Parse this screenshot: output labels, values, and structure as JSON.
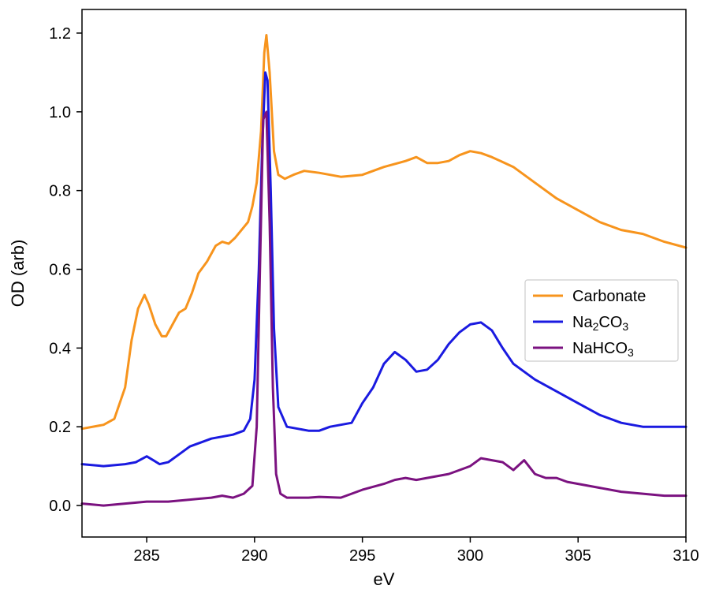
{
  "chart_data": {
    "type": "line",
    "title": "",
    "xlabel": "eV",
    "ylabel": "OD (arb)",
    "xlim": [
      282,
      310
    ],
    "ylim": [
      -0.08,
      1.26
    ],
    "xticks": [
      285,
      290,
      295,
      300,
      305,
      310
    ],
    "yticks": [
      0.0,
      0.2,
      0.4,
      0.6,
      0.8,
      1.0,
      1.2
    ],
    "xtick_labels": [
      "285",
      "290",
      "295",
      "300",
      "305",
      "310"
    ],
    "ytick_labels": [
      "0.0",
      "0.2",
      "0.4",
      "0.6",
      "0.8",
      "1.0",
      "1.2"
    ],
    "grid": false,
    "legend_position": "right",
    "series": [
      {
        "name": "Carbonate",
        "color": "#f7941d",
        "x": [
          282.0,
          283.0,
          283.5,
          284.0,
          284.3,
          284.6,
          284.9,
          285.1,
          285.4,
          285.7,
          285.9,
          286.2,
          286.5,
          286.8,
          287.1,
          287.4,
          287.8,
          288.2,
          288.5,
          288.8,
          289.1,
          289.4,
          289.7,
          289.9,
          290.1,
          290.3,
          290.45,
          290.55,
          290.7,
          290.9,
          291.1,
          291.4,
          291.8,
          292.3,
          293.0,
          294.0,
          295.0,
          296.0,
          297.0,
          297.5,
          298.0,
          298.5,
          299.0,
          299.5,
          300.0,
          300.5,
          301.0,
          302.0,
          303.0,
          304.0,
          305.0,
          306.0,
          307.0,
          308.0,
          309.0,
          310.0
        ],
        "y": [
          0.195,
          0.205,
          0.22,
          0.3,
          0.42,
          0.5,
          0.535,
          0.51,
          0.46,
          0.43,
          0.43,
          0.46,
          0.49,
          0.5,
          0.54,
          0.59,
          0.62,
          0.66,
          0.67,
          0.665,
          0.68,
          0.7,
          0.72,
          0.76,
          0.82,
          0.95,
          1.15,
          1.195,
          1.1,
          0.9,
          0.84,
          0.83,
          0.84,
          0.85,
          0.845,
          0.835,
          0.84,
          0.86,
          0.875,
          0.885,
          0.87,
          0.87,
          0.875,
          0.89,
          0.9,
          0.895,
          0.885,
          0.86,
          0.82,
          0.78,
          0.75,
          0.72,
          0.7,
          0.69,
          0.67,
          0.655
        ]
      },
      {
        "name": "Na2CO3",
        "color": "#1a1ae0",
        "x": [
          282.0,
          283.0,
          284.0,
          284.5,
          285.0,
          285.3,
          285.6,
          286.0,
          286.5,
          287.0,
          287.5,
          288.0,
          288.5,
          289.0,
          289.5,
          289.8,
          290.0,
          290.2,
          290.35,
          290.5,
          290.6,
          290.75,
          290.9,
          291.1,
          291.5,
          292.0,
          292.5,
          293.0,
          293.5,
          294.0,
          294.5,
          295.0,
          295.5,
          296.0,
          296.5,
          297.0,
          297.5,
          298.0,
          298.5,
          299.0,
          299.5,
          300.0,
          300.5,
          301.0,
          301.5,
          302.0,
          302.5,
          303.0,
          304.0,
          305.0,
          306.0,
          307.0,
          308.0,
          309.0,
          310.0
        ],
        "y": [
          0.105,
          0.1,
          0.105,
          0.11,
          0.125,
          0.115,
          0.105,
          0.11,
          0.13,
          0.15,
          0.16,
          0.17,
          0.175,
          0.18,
          0.19,
          0.22,
          0.32,
          0.6,
          0.9,
          1.1,
          1.08,
          0.8,
          0.45,
          0.25,
          0.2,
          0.195,
          0.19,
          0.19,
          0.2,
          0.205,
          0.21,
          0.26,
          0.3,
          0.36,
          0.39,
          0.37,
          0.34,
          0.345,
          0.37,
          0.41,
          0.44,
          0.46,
          0.465,
          0.445,
          0.4,
          0.36,
          0.34,
          0.32,
          0.29,
          0.26,
          0.23,
          0.21,
          0.2,
          0.2,
          0.2
        ]
      },
      {
        "name": "NaHCO3",
        "color": "#7b1280",
        "x": [
          282.0,
          283.0,
          284.0,
          285.0,
          286.0,
          287.0,
          288.0,
          288.5,
          289.0,
          289.5,
          289.9,
          290.1,
          290.25,
          290.4,
          290.55,
          290.7,
          290.85,
          291.0,
          291.2,
          291.5,
          292.0,
          292.5,
          293.0,
          294.0,
          294.5,
          295.0,
          296.0,
          296.5,
          297.0,
          297.5,
          298.0,
          298.5,
          299.0,
          299.5,
          300.0,
          300.5,
          301.0,
          301.5,
          302.0,
          302.5,
          303.0,
          303.5,
          304.0,
          304.5,
          305.0,
          306.0,
          307.0,
          308.0,
          309.0,
          310.0
        ],
        "y": [
          0.005,
          0.0,
          0.005,
          0.01,
          0.01,
          0.015,
          0.02,
          0.025,
          0.02,
          0.03,
          0.05,
          0.2,
          0.6,
          0.98,
          1.0,
          0.72,
          0.3,
          0.08,
          0.03,
          0.02,
          0.02,
          0.02,
          0.022,
          0.02,
          0.03,
          0.04,
          0.055,
          0.065,
          0.07,
          0.065,
          0.07,
          0.075,
          0.08,
          0.09,
          0.1,
          0.12,
          0.115,
          0.11,
          0.09,
          0.115,
          0.08,
          0.07,
          0.07,
          0.06,
          0.055,
          0.045,
          0.035,
          0.03,
          0.025,
          0.025
        ]
      }
    ]
  },
  "legend": {
    "items": [
      {
        "text": "Carbonate",
        "parts": [
          [
            "Carbonate",
            false
          ]
        ]
      },
      {
        "text": "Na2CO3",
        "parts": [
          [
            "Na",
            false
          ],
          [
            "2",
            true
          ],
          [
            "CO",
            false
          ],
          [
            "3",
            true
          ]
        ]
      },
      {
        "text": "NaHCO3",
        "parts": [
          [
            "NaHCO",
            false
          ],
          [
            "3",
            true
          ]
        ]
      }
    ]
  }
}
